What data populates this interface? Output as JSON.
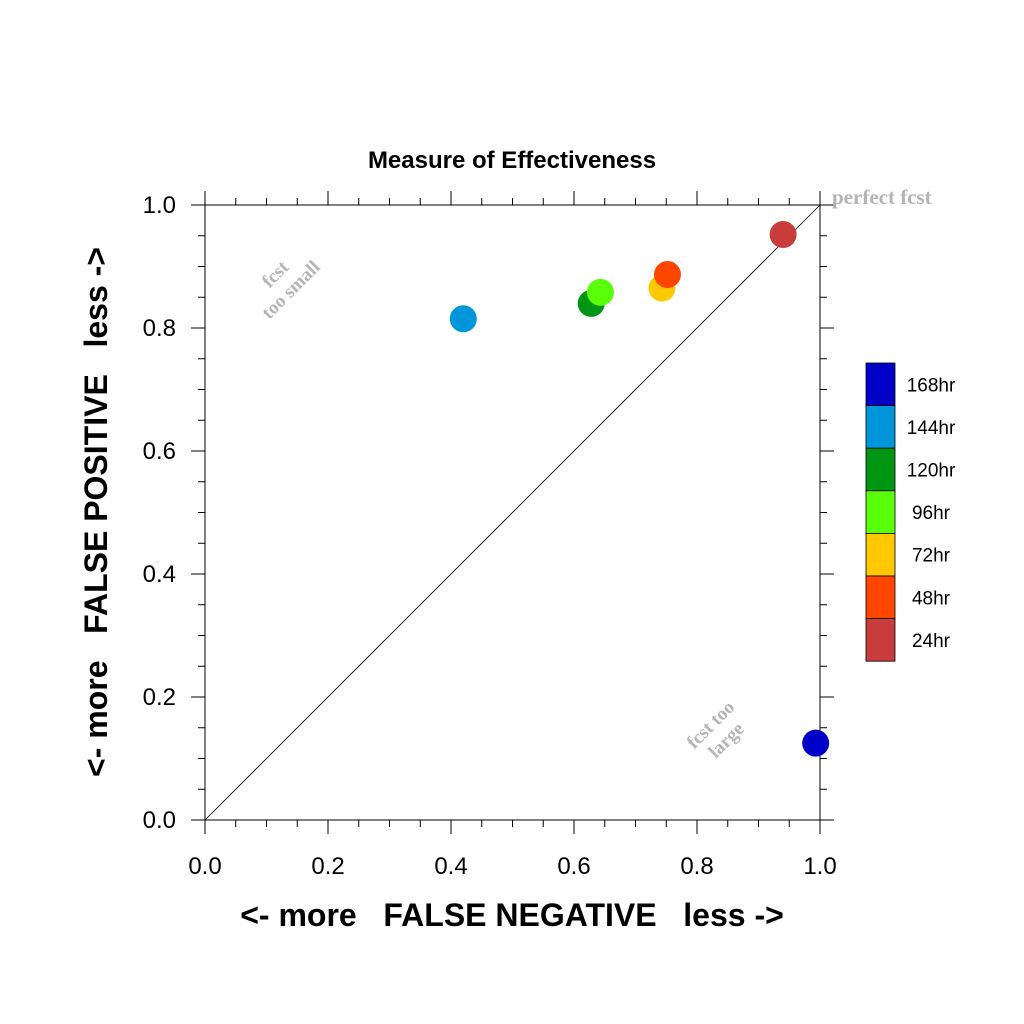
{
  "chart_data": {
    "type": "scatter",
    "title": "Measure of Effectiveness",
    "xlabel": "<- more   FALSE NEGATIVE   less ->",
    "ylabel": "<- more   FALSE POSITIVE   less ->",
    "xlim": [
      0.0,
      1.0
    ],
    "ylim": [
      0.0,
      1.0
    ],
    "x_ticks": [
      "0.0",
      "0.2",
      "0.4",
      "0.6",
      "0.8",
      "1.0"
    ],
    "y_ticks": [
      "0.0",
      "0.2",
      "0.4",
      "0.6",
      "0.8",
      "1.0"
    ],
    "grid": false,
    "diagonal_reference": true,
    "annotations": {
      "perfect": "perfect fcst",
      "small_line1": "fcst",
      "small_line2": "too small",
      "large_line1": "fcst too",
      "large_line2": "large"
    },
    "series": [
      {
        "name": "168hr",
        "color": "#0000c8",
        "x": 0.993,
        "y": 0.125
      },
      {
        "name": "144hr",
        "color": "#0096dc",
        "x": 0.42,
        "y": 0.815
      },
      {
        "name": "120hr",
        "color": "#009614",
        "x": 0.628,
        "y": 0.84
      },
      {
        "name": "96hr",
        "color": "#5aff0a",
        "x": 0.643,
        "y": 0.858
      },
      {
        "name": "72hr",
        "color": "#ffc800",
        "x": 0.743,
        "y": 0.865
      },
      {
        "name": "48hr",
        "color": "#ff4600",
        "x": 0.752,
        "y": 0.887
      },
      {
        "name": "24hr",
        "color": "#c83c3c",
        "x": 0.94,
        "y": 0.952
      }
    ],
    "legend_position": "right"
  }
}
